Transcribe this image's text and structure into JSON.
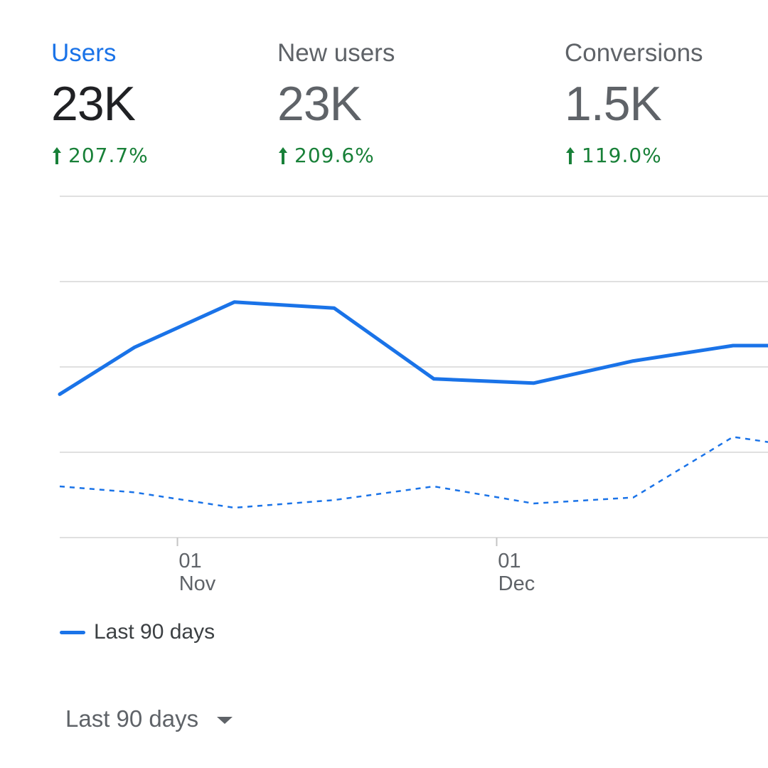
{
  "metrics": [
    {
      "label": "Users",
      "value": "23K",
      "change": "207.7%",
      "direction": "up",
      "active": true
    },
    {
      "label": "New users",
      "value": "23K",
      "change": "209.6%",
      "direction": "up",
      "active": false
    },
    {
      "label": "Conversions",
      "value": "1.5K",
      "change": "119.0%",
      "direction": "up",
      "active": false
    }
  ],
  "colors": {
    "accent": "#1a73e8",
    "positive": "#188038",
    "gridline": "#e0e0e0",
    "text_muted": "#5f6368"
  },
  "chart_data": {
    "type": "line",
    "x_ticks": [
      {
        "day": "01",
        "month": "Nov"
      },
      {
        "day": "01",
        "month": "Dec"
      }
    ],
    "ylim": [
      0,
      4
    ],
    "grid": true,
    "series": [
      {
        "name": "Last 90 days",
        "style": "solid",
        "color": "#1a73e8",
        "points": [
          [
            0,
            1.68
          ],
          [
            0.15,
            2.23
          ],
          [
            0.35,
            2.76
          ],
          [
            0.55,
            2.69
          ],
          [
            0.75,
            1.86
          ],
          [
            0.95,
            1.81
          ],
          [
            1.15,
            2.07
          ],
          [
            1.35,
            2.25
          ],
          [
            1.42,
            2.25
          ]
        ]
      },
      {
        "name": "",
        "style": "dashed",
        "color": "#1a73e8",
        "points": [
          [
            0,
            0.6
          ],
          [
            0.15,
            0.53
          ],
          [
            0.35,
            0.35
          ],
          [
            0.55,
            0.44
          ],
          [
            0.75,
            0.6
          ],
          [
            0.95,
            0.4
          ],
          [
            1.15,
            0.47
          ],
          [
            1.35,
            1.18
          ],
          [
            1.42,
            1.12
          ]
        ]
      }
    ]
  },
  "legend": {
    "items": [
      {
        "label": "Last 90 days"
      }
    ]
  },
  "date_range": {
    "label": "Last 90 days"
  }
}
